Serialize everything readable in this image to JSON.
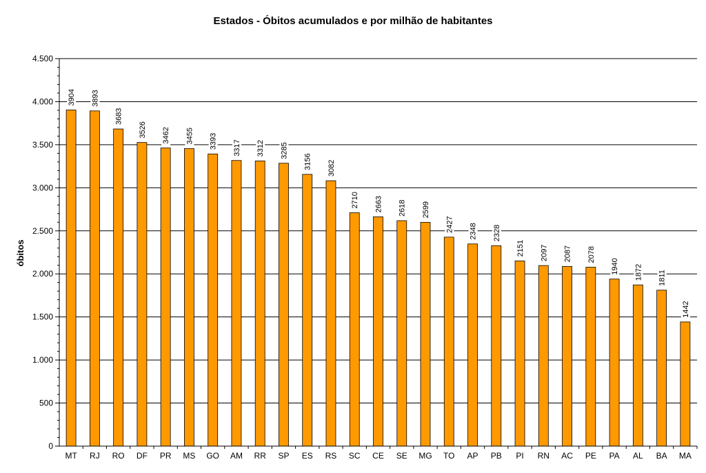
{
  "chart_data": {
    "type": "bar",
    "title": "Estados - Óbitos acumulados e por milhão de habitantes",
    "ylabel": "óbitos",
    "xlabel": "",
    "ylim": [
      0,
      4500
    ],
    "yticks": [
      0,
      500,
      1000,
      1500,
      2000,
      2500,
      3000,
      3500,
      4000,
      4500
    ],
    "ytick_labels": [
      "0",
      "500",
      "1.000",
      "1.500",
      "2.000",
      "2.500",
      "3.000",
      "3.500",
      "4.000",
      "4.500"
    ],
    "categories": [
      "MT",
      "RJ",
      "RO",
      "DF",
      "PR",
      "MS",
      "GO",
      "AM",
      "RR",
      "SP",
      "ES",
      "RS",
      "SC",
      "CE",
      "SE",
      "MG",
      "TO",
      "AP",
      "PB",
      "PI",
      "RN",
      "AC",
      "PE",
      "PA",
      "AL",
      "BA",
      "MA"
    ],
    "values": [
      3904,
      3893,
      3683,
      3526,
      3462,
      3455,
      3393,
      3317,
      3312,
      3285,
      3156,
      3082,
      2710,
      2663,
      2618,
      2599,
      2427,
      2348,
      2328,
      2151,
      2097,
      2087,
      2078,
      1940,
      1872,
      1811,
      1442
    ],
    "grid": true,
    "bar_color": "#FF9900",
    "bar_edge_color": "#000000"
  }
}
